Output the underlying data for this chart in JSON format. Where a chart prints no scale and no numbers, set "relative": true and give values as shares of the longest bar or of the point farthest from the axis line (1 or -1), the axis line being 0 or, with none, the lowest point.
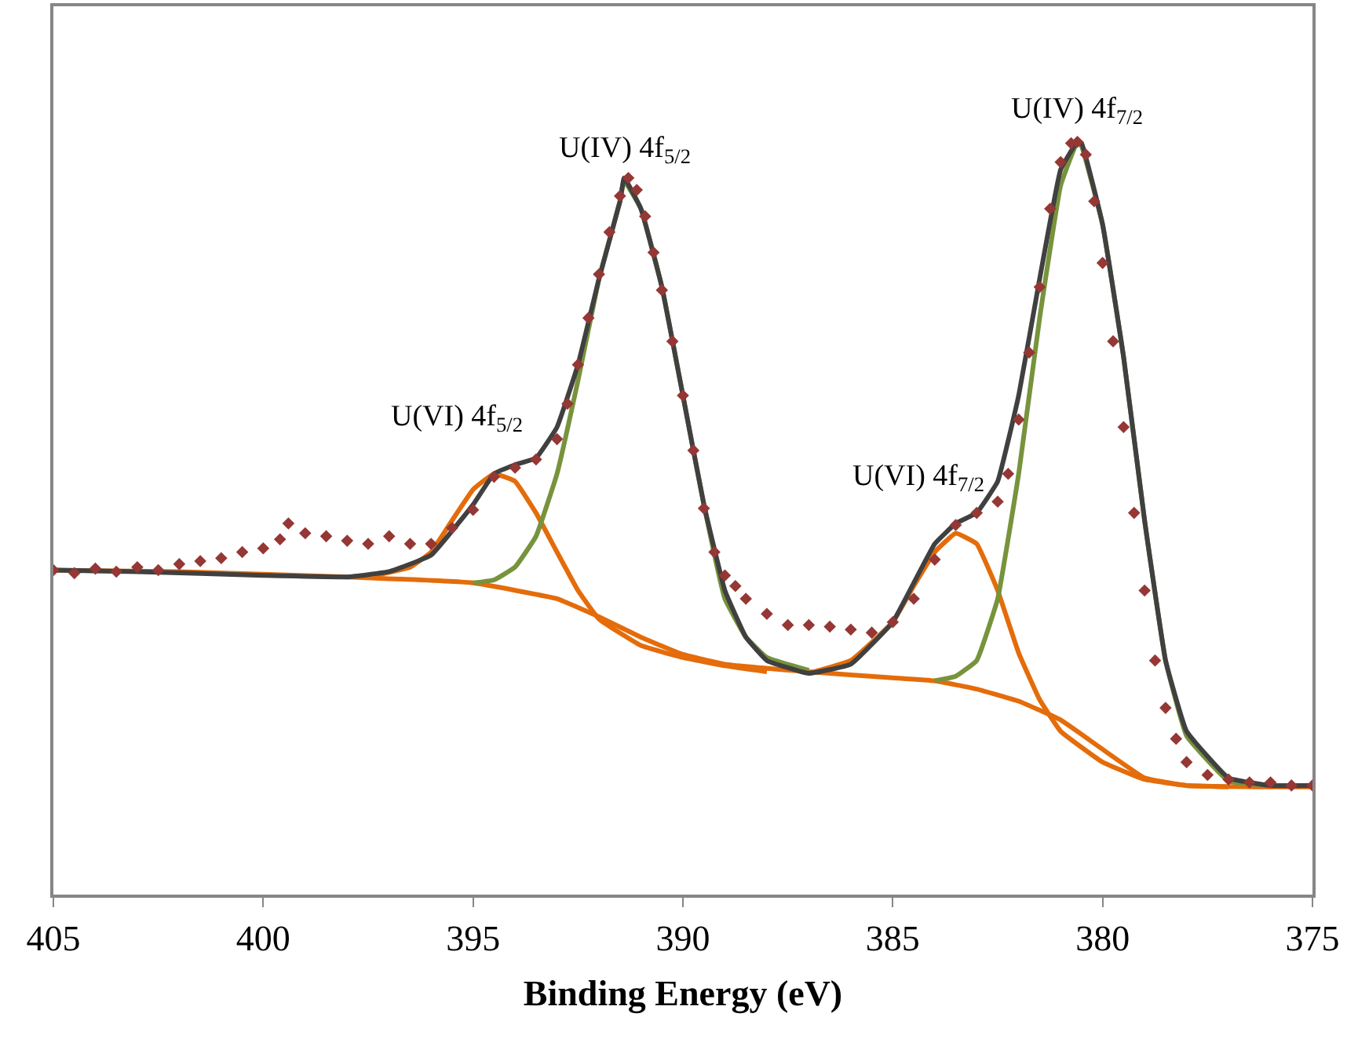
{
  "chart_data": {
    "type": "line",
    "relative": true,
    "xlabel": "Binding Energy (eV)",
    "xlim": [
      405,
      375
    ],
    "xticks": [
      405,
      400,
      395,
      390,
      385,
      380,
      375
    ],
    "annotations": [
      {
        "text": "U(VI) 4f$_{5/2}$",
        "x": 394.5,
        "y": 0.559
      },
      {
        "text": "U(IV) 4f$_{5/2}$",
        "x": 391.4,
        "y": 0.948
      },
      {
        "text": "U(VI) 4f$_{7/2}$",
        "x": 383.5,
        "y": 0.48
      },
      {
        "text": "U(IV) 4f$_{7/2}$",
        "x": 380.6,
        "y": 1.0
      }
    ],
    "series": [
      {
        "color": "#e46c0a",
        "line_style": "solid",
        "marker": "none",
        "x": [
          405,
          402,
          398,
          395,
          393,
          392,
          391,
          390,
          389,
          387,
          385,
          384,
          383,
          382,
          381,
          380,
          379,
          378,
          376,
          375
        ],
        "values": [
          0.431,
          0.429,
          0.422,
          0.414,
          0.393,
          0.369,
          0.342,
          0.319,
          0.306,
          0.296,
          0.288,
          0.284,
          0.273,
          0.257,
          0.232,
          0.193,
          0.155,
          0.145,
          0.143,
          0.143
        ]
      },
      {
        "color": "#e46c0a",
        "line_style": "solid",
        "marker": "none",
        "x": [
          397.5,
          396.5,
          396,
          395.5,
          395,
          394.5,
          394,
          393.5,
          393,
          392.5,
          392,
          391,
          390,
          389,
          388
        ],
        "values": [
          0.422,
          0.435,
          0.455,
          0.497,
          0.538,
          0.559,
          0.549,
          0.507,
          0.455,
          0.404,
          0.366,
          0.331,
          0.315,
          0.304,
          0.296
        ]
      },
      {
        "color": "#e46c0a",
        "line_style": "solid",
        "marker": "none",
        "x": [
          387,
          386,
          385,
          384.5,
          384,
          383.5,
          383,
          382.5,
          382,
          381.5,
          381,
          380,
          379,
          378,
          377
        ],
        "values": [
          0.294,
          0.311,
          0.362,
          0.41,
          0.455,
          0.48,
          0.466,
          0.404,
          0.321,
          0.259,
          0.217,
          0.176,
          0.153,
          0.145,
          0.143
        ]
      },
      {
        "color": "#77933c",
        "line_style": "solid",
        "marker": "none",
        "x": [
          395,
          394.5,
          394,
          393.5,
          393,
          392.5,
          392,
          391.5,
          391.4,
          391,
          390.5,
          390,
          389.5,
          389,
          388.5,
          388,
          387
        ],
        "values": [
          0.414,
          0.418,
          0.435,
          0.476,
          0.559,
          0.683,
          0.818,
          0.921,
          0.948,
          0.911,
          0.807,
          0.663,
          0.518,
          0.393,
          0.342,
          0.315,
          0.298
        ]
      },
      {
        "color": "#77933c",
        "line_style": "solid",
        "marker": "none",
        "x": [
          384,
          383.5,
          383,
          382.5,
          382,
          381.5,
          381,
          380.6,
          380.5,
          380,
          379.5,
          379,
          378.5,
          378,
          377,
          376,
          375
        ],
        "values": [
          0.284,
          0.29,
          0.311,
          0.393,
          0.559,
          0.766,
          0.942,
          1.0,
          0.994,
          0.89,
          0.714,
          0.497,
          0.311,
          0.211,
          0.151,
          0.145,
          0.145
        ]
      },
      {
        "color": "#404040",
        "line_style": "solid",
        "marker": "none",
        "x": [
          405,
          403,
          400,
          398,
          397,
          396,
          395,
          394.5,
          394,
          393.5,
          393,
          392.5,
          392,
          391.5,
          391.4,
          391,
          390.5,
          390,
          389.5,
          389,
          388.5,
          388,
          387,
          386,
          385,
          384.5,
          384,
          383.5,
          383,
          382.5,
          382,
          381.5,
          381,
          380.6,
          380.5,
          380,
          379.5,
          379,
          378.5,
          378,
          377,
          376,
          375
        ],
        "values": [
          0.431,
          0.429,
          0.424,
          0.422,
          0.429,
          0.451,
          0.518,
          0.559,
          0.571,
          0.58,
          0.621,
          0.704,
          0.818,
          0.921,
          0.952,
          0.911,
          0.807,
          0.663,
          0.518,
          0.404,
          0.342,
          0.311,
          0.294,
          0.306,
          0.362,
          0.414,
          0.466,
          0.493,
          0.507,
          0.549,
          0.663,
          0.818,
          0.963,
          1.0,
          0.998,
          0.89,
          0.714,
          0.497,
          0.311,
          0.217,
          0.155,
          0.145,
          0.145
        ]
      },
      {
        "type": "scatter",
        "color": "#953735",
        "marker": "diamond",
        "x": [
          405,
          404.5,
          404,
          403.5,
          403,
          402.5,
          402,
          401.5,
          401,
          400.5,
          400,
          399.6,
          399.4,
          399,
          398.5,
          398,
          397.5,
          397,
          396.5,
          396,
          395.5,
          395,
          394.5,
          394,
          393.5,
          393,
          392.75,
          392.5,
          392.25,
          392,
          391.75,
          391.5,
          391.3,
          391.1,
          390.9,
          390.7,
          390.5,
          390.25,
          390,
          389.75,
          389.5,
          389.25,
          389,
          388.75,
          388.5,
          388,
          387.5,
          387,
          386.5,
          386,
          385.5,
          385,
          384.5,
          384,
          383.5,
          383,
          382.5,
          382.25,
          382,
          381.75,
          381.5,
          381.25,
          381,
          380.75,
          380.6,
          380.4,
          380.2,
          380,
          379.75,
          379.5,
          379.25,
          379,
          378.75,
          378.5,
          378.25,
          378,
          377.5,
          377,
          376.5,
          376,
          375.5,
          375
        ],
        "values": [
          0.431,
          0.427,
          0.433,
          0.429,
          0.435,
          0.431,
          0.439,
          0.443,
          0.447,
          0.455,
          0.46,
          0.472,
          0.493,
          0.48,
          0.476,
          0.47,
          0.466,
          0.476,
          0.466,
          0.466,
          0.487,
          0.511,
          0.555,
          0.567,
          0.578,
          0.605,
          0.652,
          0.704,
          0.766,
          0.824,
          0.88,
          0.928,
          0.952,
          0.936,
          0.901,
          0.853,
          0.803,
          0.735,
          0.663,
          0.59,
          0.513,
          0.455,
          0.424,
          0.41,
          0.393,
          0.373,
          0.358,
          0.358,
          0.356,
          0.352,
          0.348,
          0.362,
          0.393,
          0.445,
          0.491,
          0.507,
          0.522,
          0.559,
          0.631,
          0.72,
          0.807,
          0.911,
          0.973,
          0.998,
          1.0,
          0.983,
          0.921,
          0.839,
          0.735,
          0.621,
          0.507,
          0.404,
          0.311,
          0.248,
          0.207,
          0.176,
          0.159,
          0.153,
          0.149,
          0.149,
          0.145,
          0.145
        ]
      }
    ]
  }
}
